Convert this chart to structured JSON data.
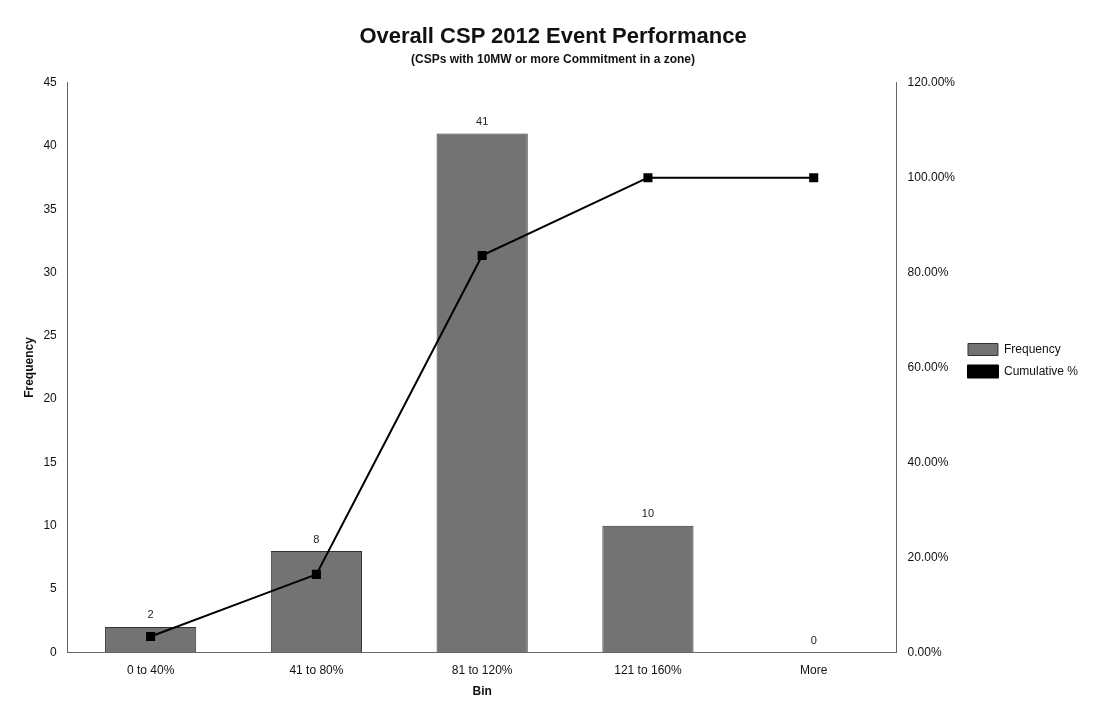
{
  "chart_data": {
    "type": "bar",
    "title": "Overall CSP 2012 Event Performance",
    "subtitle": "(CSPs with 10MW or more Commitment in a zone)",
    "xlabel": "Bin",
    "ylabel": "Frequency",
    "categories": [
      "0 to 40%",
      "41 to 80%",
      "81 to 120%",
      "121 to 160%",
      "More"
    ],
    "series": [
      {
        "name": "Frequency",
        "color": "#737373",
        "values": [
          2,
          8,
          41,
          10,
          0
        ],
        "value_labels": [
          "2",
          "8",
          "41",
          "10",
          "0"
        ]
      },
      {
        "name": "Cumulative %",
        "type": "line",
        "axis": "y2",
        "color": "#000000",
        "values": [
          3.3,
          16.4,
          83.6,
          100,
          100
        ],
        "marker": "square"
      }
    ],
    "ylim": [
      0,
      45
    ],
    "yticks": [
      0,
      5,
      10,
      15,
      20,
      25,
      30,
      35,
      40,
      45
    ],
    "y2lim": [
      0,
      120
    ],
    "y2ticks": [
      {
        "value": 0,
        "label": "0.00%"
      },
      {
        "value": 20,
        "label": "20.00%"
      },
      {
        "value": 40,
        "label": "40.00%"
      },
      {
        "value": 60,
        "label": "60.00%"
      },
      {
        "value": 80,
        "label": "80.00%"
      },
      {
        "value": 100,
        "label": "100.00%"
      },
      {
        "value": 120,
        "label": "120.00%"
      }
    ],
    "grid": false,
    "legend": "right"
  }
}
